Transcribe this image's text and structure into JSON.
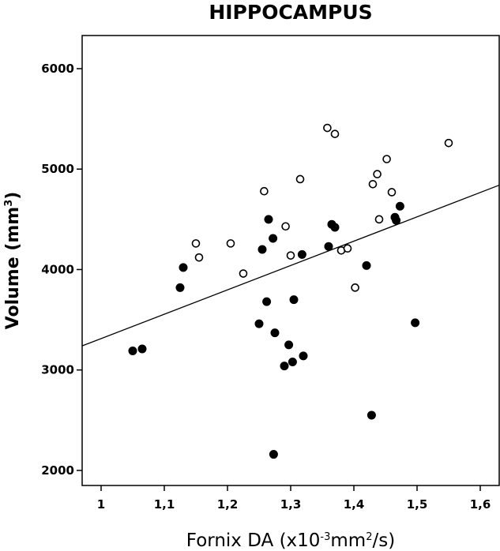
{
  "chart_data": {
    "type": "scatter",
    "title": "HIPPOCAMPUS",
    "xlabel": {
      "main": "Fornix DA (x10",
      "exp": "-3",
      "unit": "mm",
      "exp2": "2",
      "suffix": "/s)"
    },
    "ylabel": {
      "main": "Volume (mm",
      "exp": "3",
      "suffix": ")"
    },
    "xlim": [
      0.97,
      1.63
    ],
    "ylim": [
      1850,
      6330
    ],
    "xticks": [
      1,
      1.1,
      1.2,
      1.3,
      1.4,
      1.5,
      1.6
    ],
    "xtick_labels": [
      "1",
      "1,1",
      "1,2",
      "1,3",
      "1,4",
      "1,5",
      "1,6"
    ],
    "yticks": [
      2000,
      3000,
      4000,
      5000,
      6000
    ],
    "ytick_labels": [
      "2000",
      "3000",
      "4000",
      "5000",
      "6000"
    ],
    "grid": false,
    "fit_line": {
      "x": [
        0.97,
        1.63
      ],
      "y": [
        3240,
        4840
      ]
    },
    "series": [
      {
        "marker": "filled",
        "points": [
          [
            1.05,
            3190
          ],
          [
            1.065,
            3210
          ],
          [
            1.125,
            3820
          ],
          [
            1.13,
            4020
          ],
          [
            1.25,
            3460
          ],
          [
            1.255,
            4200
          ],
          [
            1.262,
            3680
          ],
          [
            1.265,
            4500
          ],
          [
            1.272,
            4310
          ],
          [
            1.273,
            2160
          ],
          [
            1.275,
            3370
          ],
          [
            1.29,
            3040
          ],
          [
            1.297,
            3250
          ],
          [
            1.303,
            3080
          ],
          [
            1.305,
            3700
          ],
          [
            1.318,
            4150
          ],
          [
            1.32,
            3140
          ],
          [
            1.36,
            4230
          ],
          [
            1.365,
            4450
          ],
          [
            1.37,
            4420
          ],
          [
            1.42,
            4040
          ],
          [
            1.428,
            2550
          ],
          [
            1.465,
            4520
          ],
          [
            1.467,
            4490
          ],
          [
            1.473,
            4630
          ],
          [
            1.497,
            3470
          ]
        ]
      },
      {
        "marker": "open",
        "points": [
          [
            1.15,
            4260
          ],
          [
            1.155,
            4120
          ],
          [
            1.205,
            4260
          ],
          [
            1.225,
            3960
          ],
          [
            1.258,
            4780
          ],
          [
            1.292,
            4430
          ],
          [
            1.3,
            4140
          ],
          [
            1.315,
            4900
          ],
          [
            1.358,
            5410
          ],
          [
            1.37,
            5350
          ],
          [
            1.38,
            4190
          ],
          [
            1.39,
            4210
          ],
          [
            1.402,
            3820
          ],
          [
            1.43,
            4850
          ],
          [
            1.437,
            4950
          ],
          [
            1.44,
            4500
          ],
          [
            1.452,
            5100
          ],
          [
            1.46,
            4770
          ],
          [
            1.55,
            5260
          ]
        ]
      }
    ]
  }
}
